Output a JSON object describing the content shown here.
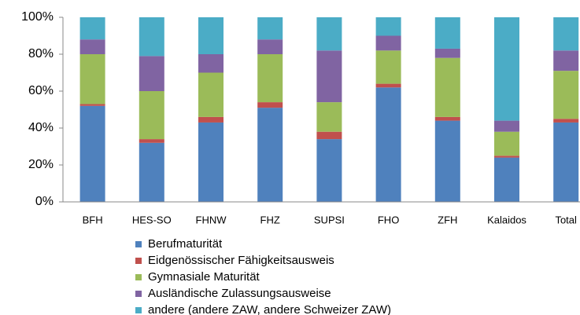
{
  "chart_data": {
    "type": "stacked_bar",
    "categories": [
      "BFH",
      "HES-SO",
      "FHNW",
      "FHZ",
      "SUPSI",
      "FHO",
      "ZFH",
      "Kalaidos",
      "Total"
    ],
    "series": [
      {
        "name": "Berufmaturität",
        "color": "#4f81bd",
        "values": [
          52,
          32,
          43,
          51,
          34,
          62,
          44,
          24,
          43
        ]
      },
      {
        "name": "Eidgenössischer Fähigkeitsausweis",
        "color": "#c0504d",
        "values": [
          1,
          2,
          3,
          3,
          4,
          2,
          2,
          1,
          2
        ]
      },
      {
        "name": "Gymnasiale Maturität",
        "color": "#9bbb59",
        "values": [
          27,
          26,
          24,
          26,
          16,
          18,
          32,
          13,
          26
        ]
      },
      {
        "name": "Ausländische Zulassungsausweise",
        "color": "#8064a2",
        "values": [
          8,
          19,
          10,
          8,
          28,
          8,
          5,
          6,
          11
        ]
      },
      {
        "name": "andere (andere ZAW, andere Schweizer ZAW)",
        "color": "#4bacc6",
        "values": [
          12,
          21,
          20,
          12,
          18,
          10,
          17,
          56,
          18
        ]
      }
    ],
    "ylim": [
      0,
      100
    ],
    "yticks": [
      {
        "value": 0,
        "label": "0%"
      },
      {
        "value": 20,
        "label": "20%"
      },
      {
        "value": 40,
        "label": "40%"
      },
      {
        "value": 60,
        "label": "60%"
      },
      {
        "value": 80,
        "label": "80%"
      },
      {
        "value": 100,
        "label": "100%"
      }
    ],
    "grid": false,
    "legend": "bottom"
  }
}
